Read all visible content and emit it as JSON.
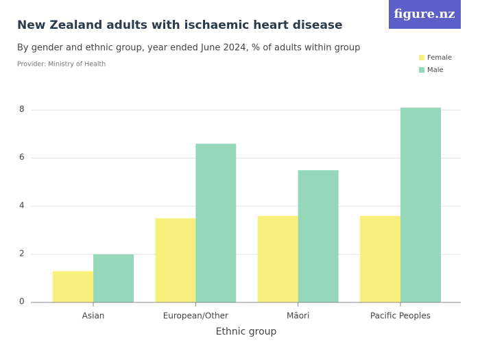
{
  "logo": "figure.nz",
  "chart_data": {
    "type": "bar",
    "title": "New Zealand adults with ischaemic heart disease",
    "subtitle": "By gender and ethnic group, year ended June 2024, % of adults within group",
    "provider": "Provider: Ministry of Health",
    "x_label": "Ethnic group",
    "categories": [
      "Asian",
      "European/Other",
      "Māori",
      "Pacific Peoples"
    ],
    "series": [
      {
        "name": "Female",
        "color": "#f8ef7c",
        "values": [
          1.3,
          3.5,
          3.6,
          3.6
        ]
      },
      {
        "name": "Male",
        "color": "#95d7b9",
        "values": [
          2.0,
          6.6,
          5.5,
          8.1
        ]
      }
    ],
    "ylim": [
      0,
      8.3
    ],
    "yticks": [
      0,
      2,
      4,
      6,
      8
    ],
    "grid": true,
    "legend": "top-right"
  }
}
